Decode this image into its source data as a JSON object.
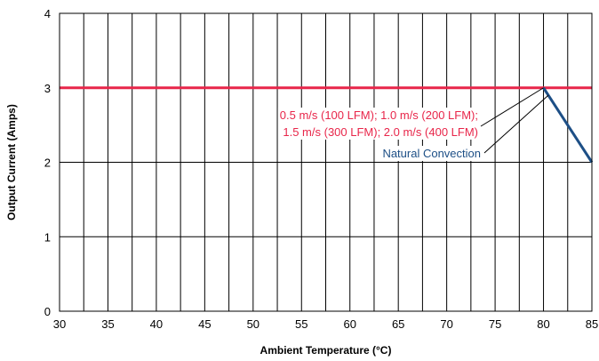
{
  "chart_data": {
    "type": "line",
    "xlabel": "Ambient Temperature (°C)",
    "ylabel": "Output Current (Amps)",
    "xlim": [
      30,
      85
    ],
    "ylim": [
      0,
      4
    ],
    "x_ticks": [
      30,
      35,
      40,
      45,
      50,
      55,
      60,
      65,
      70,
      75,
      80,
      85
    ],
    "x_tick_labels": [
      "30",
      "35",
      "40",
      "45",
      "50",
      "55",
      "60",
      "65",
      "70",
      "75",
      "80",
      "85"
    ],
    "y_ticks": [
      0,
      1,
      2,
      3,
      4
    ],
    "y_tick_labels": [
      "0",
      "1",
      "2",
      "3",
      "4"
    ],
    "x_minor_step": 2.5,
    "grid": true,
    "series": [
      {
        "color": "#e8264a",
        "points": [
          [
            30,
            3
          ],
          [
            85,
            3
          ]
        ]
      },
      {
        "color": "#1d4f86",
        "points": [
          [
            80,
            3
          ],
          [
            85,
            2
          ]
        ]
      }
    ],
    "annotations": [
      {
        "lines": [
          "0.5 m/s (100 LFM); 1.0 m/s (200 LFM);",
          "1.5 m/s (300 LFM); 2.0 m/s (400 LFM)"
        ],
        "color": "#e8264a",
        "target": [
          80,
          3
        ]
      },
      {
        "lines": [
          "Natural Convection"
        ],
        "color": "#1d4f86",
        "target": [
          80.5,
          2.9
        ]
      }
    ]
  }
}
